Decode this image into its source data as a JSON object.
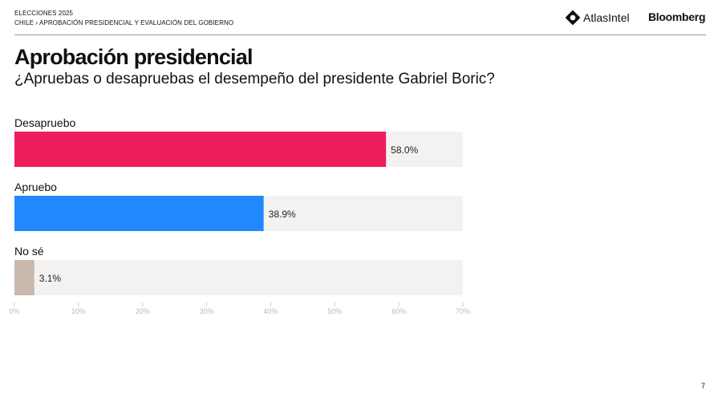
{
  "header": {
    "line1": "ELECCIONES 2025",
    "line2": "CHILE › APROBACIÓN PRESIDENCIAL Y EVALUACIÓN DEL GOBIERNO",
    "logo_atlas": "AtlasIntel",
    "logo_bloomberg": "Bloomberg"
  },
  "page_number": "7",
  "chart_data": {
    "type": "bar",
    "orientation": "horizontal",
    "title": "Aprobación presidencial",
    "subtitle": "¿Apruebas o desapruebas el desempeño del presidente Gabriel Boric?",
    "categories": [
      "Desapruebo",
      "Apruebo",
      "No sé"
    ],
    "values": [
      58.0,
      38.9,
      3.1
    ],
    "data_labels": [
      "58.0%",
      "38.9%",
      "3.1%"
    ],
    "colors": [
      "#ee1d5c",
      "#2288ff",
      "#c8b8ae"
    ],
    "track_color": "#f3f2f0",
    "xlim": [
      0,
      70
    ],
    "xticks": [
      0,
      10,
      20,
      30,
      40,
      50,
      60,
      70
    ],
    "xtick_labels": [
      "0%",
      "10%",
      "20%",
      "30%",
      "40%",
      "50%",
      "60%",
      "70%"
    ],
    "grid": false
  }
}
